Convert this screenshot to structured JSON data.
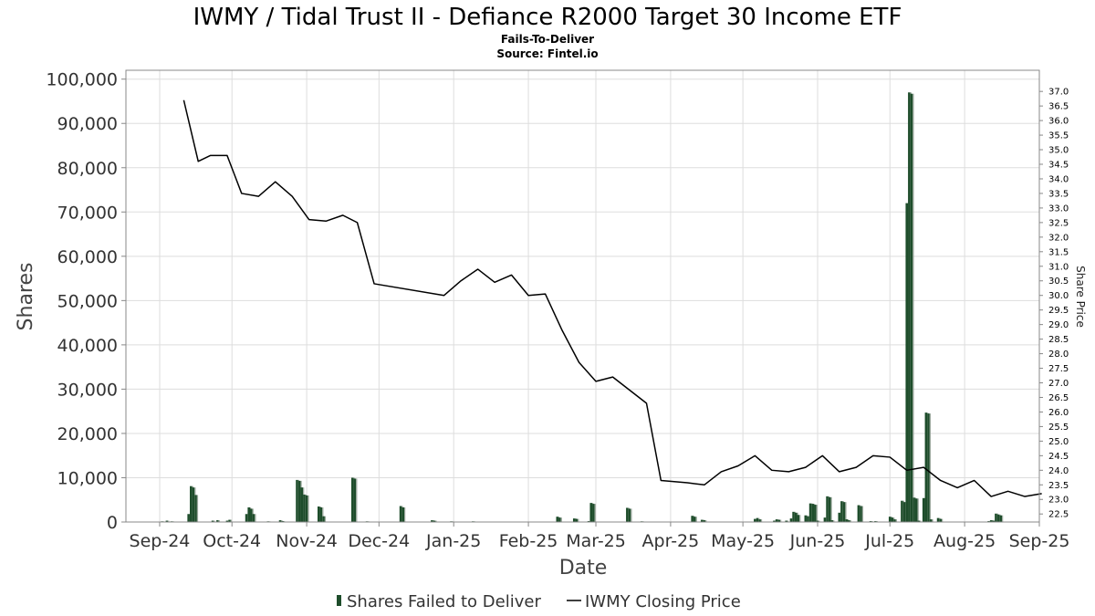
{
  "chart_data": {
    "type": "bar",
    "title": "IWMY / Tidal Trust II - Defiance R2000 Target 30 Income ETF",
    "subtitle": "Fails-To-Deliver",
    "source": "Source: Fintel.io",
    "xlabel": "Date",
    "ylabel": "Shares",
    "y2label": "Share Price",
    "x_range": [
      "2024-09-01",
      "2025-09-15"
    ],
    "ylim": [
      0,
      102000
    ],
    "y2lim": [
      22.35,
      37.35
    ],
    "grid": true,
    "legend_placement": "bottom-center",
    "x_ticks": [
      {
        "date": "2024-09-15",
        "label": "Sep-24"
      },
      {
        "date": "2024-10-15",
        "label": "Oct-24"
      },
      {
        "date": "2024-11-15",
        "label": "Nov-24"
      },
      {
        "date": "2024-12-15",
        "label": "Dec-24"
      },
      {
        "date": "2025-01-15",
        "label": "Jan-25"
      },
      {
        "date": "2025-02-15",
        "label": "Feb-25"
      },
      {
        "date": "2025-03-15",
        "label": "Mar-25"
      },
      {
        "date": "2025-04-15",
        "label": "Apr-25"
      },
      {
        "date": "2025-05-15",
        "label": "May-25"
      },
      {
        "date": "2025-06-15",
        "label": "Jun-25"
      },
      {
        "date": "2025-07-15",
        "label": "Jul-25"
      },
      {
        "date": "2025-08-15",
        "label": "Aug-25"
      },
      {
        "date": "2025-09-15",
        "label": "Sep-25"
      }
    ],
    "y_ticks": [
      {
        "value": 0,
        "label": "0"
      },
      {
        "value": 10000,
        "label": "10,000"
      },
      {
        "value": 20000,
        "label": "20,000"
      },
      {
        "value": 30000,
        "label": "30,000"
      },
      {
        "value": 40000,
        "label": "40,000"
      },
      {
        "value": 50000,
        "label": "50,000"
      },
      {
        "value": 60000,
        "label": "60,000"
      },
      {
        "value": 70000,
        "label": "70,000"
      },
      {
        "value": 80000,
        "label": "80,000"
      },
      {
        "value": 90000,
        "label": "90,000"
      },
      {
        "value": 100000,
        "label": "100,000"
      }
    ],
    "y2_ticks": [
      "22.5",
      "23.0",
      "23.5",
      "24.0",
      "24.5",
      "25.0",
      "25.5",
      "26.0",
      "26.5",
      "27.0",
      "27.5",
      "28.0",
      "28.5",
      "29.0",
      "29.5",
      "30.0",
      "30.5",
      "31.0",
      "31.5",
      "32.0",
      "32.5",
      "33.0",
      "33.5",
      "34.0",
      "34.5",
      "35.0",
      "35.5",
      "36.0",
      "36.5",
      "37.0"
    ],
    "series": [
      {
        "name": "Shares Failed to Deliver",
        "type": "bar",
        "color": "#1e4d2b",
        "points": [
          [
            "2024-09-16",
            150
          ],
          [
            "2024-09-18",
            300
          ],
          [
            "2024-09-20",
            150
          ],
          [
            "2024-09-27",
            1800
          ],
          [
            "2024-09-28",
            8100
          ],
          [
            "2024-09-29",
            7800
          ],
          [
            "2024-09-30",
            6100
          ],
          [
            "2024-10-07",
            300
          ],
          [
            "2024-10-09",
            400
          ],
          [
            "2024-10-13",
            300
          ],
          [
            "2024-10-14",
            500
          ],
          [
            "2024-10-21",
            1800
          ],
          [
            "2024-10-22",
            3300
          ],
          [
            "2024-10-23",
            3000
          ],
          [
            "2024-10-24",
            1800
          ],
          [
            "2024-10-30",
            150
          ],
          [
            "2024-11-04",
            400
          ],
          [
            "2024-11-05",
            200
          ],
          [
            "2024-11-11",
            9500
          ],
          [
            "2024-11-12",
            9300
          ],
          [
            "2024-11-13",
            7800
          ],
          [
            "2024-11-14",
            6200
          ],
          [
            "2024-11-15",
            6000
          ],
          [
            "2024-11-20",
            3500
          ],
          [
            "2024-11-21",
            3300
          ],
          [
            "2024-11-22",
            1300
          ],
          [
            "2024-12-04",
            10000
          ],
          [
            "2024-12-05",
            9800
          ],
          [
            "2024-12-10",
            150
          ],
          [
            "2024-12-24",
            3600
          ],
          [
            "2024-12-25",
            3300
          ],
          [
            "2025-01-06",
            400
          ],
          [
            "2025-01-07",
            300
          ],
          [
            "2025-01-14",
            150
          ],
          [
            "2025-01-23",
            150
          ],
          [
            "2025-02-27",
            1200
          ],
          [
            "2025-02-28",
            1000
          ],
          [
            "2025-03-06",
            800
          ],
          [
            "2025-03-07",
            700
          ],
          [
            "2025-03-12",
            200
          ],
          [
            "2025-03-13",
            4300
          ],
          [
            "2025-03-14",
            4100
          ],
          [
            "2025-03-28",
            3200
          ],
          [
            "2025-03-29",
            3000
          ],
          [
            "2025-04-03",
            150
          ],
          [
            "2025-04-24",
            1400
          ],
          [
            "2025-04-25",
            1200
          ],
          [
            "2025-04-28",
            500
          ],
          [
            "2025-04-29",
            400
          ],
          [
            "2025-05-20",
            700
          ],
          [
            "2025-05-21",
            900
          ],
          [
            "2025-05-22",
            600
          ],
          [
            "2025-05-28",
            300
          ],
          [
            "2025-05-29",
            600
          ],
          [
            "2025-05-30",
            500
          ],
          [
            "2025-06-02",
            300
          ],
          [
            "2025-06-04",
            800
          ],
          [
            "2025-06-05",
            2300
          ],
          [
            "2025-06-06",
            2100
          ],
          [
            "2025-06-07",
            1600
          ],
          [
            "2025-06-10",
            1500
          ],
          [
            "2025-06-11",
            1300
          ],
          [
            "2025-06-12",
            4200
          ],
          [
            "2025-06-13",
            4100
          ],
          [
            "2025-06-14",
            3900
          ],
          [
            "2025-06-15",
            300
          ],
          [
            "2025-06-18",
            1000
          ],
          [
            "2025-06-19",
            5800
          ],
          [
            "2025-06-20",
            5600
          ],
          [
            "2025-06-21",
            400
          ],
          [
            "2025-06-24",
            2100
          ],
          [
            "2025-06-25",
            4700
          ],
          [
            "2025-06-26",
            4500
          ],
          [
            "2025-06-27",
            600
          ],
          [
            "2025-06-28",
            400
          ],
          [
            "2025-07-02",
            3800
          ],
          [
            "2025-07-03",
            3600
          ],
          [
            "2025-07-07",
            200
          ],
          [
            "2025-07-09",
            200
          ],
          [
            "2025-07-15",
            1200
          ],
          [
            "2025-07-16",
            1000
          ],
          [
            "2025-07-17",
            600
          ],
          [
            "2025-07-20",
            4800
          ],
          [
            "2025-07-21",
            4500
          ],
          [
            "2025-07-22",
            72000
          ],
          [
            "2025-07-23",
            97000
          ],
          [
            "2025-07-24",
            96700
          ],
          [
            "2025-07-25",
            5500
          ],
          [
            "2025-07-26",
            5300
          ],
          [
            "2025-07-27",
            300
          ],
          [
            "2025-07-29",
            5400
          ],
          [
            "2025-07-30",
            24700
          ],
          [
            "2025-07-31",
            24500
          ],
          [
            "2025-08-01",
            600
          ],
          [
            "2025-08-04",
            900
          ],
          [
            "2025-08-05",
            700
          ],
          [
            "2025-08-25",
            200
          ],
          [
            "2025-08-26",
            400
          ],
          [
            "2025-08-27",
            300
          ],
          [
            "2025-08-28",
            1900
          ],
          [
            "2025-08-29",
            1700
          ],
          [
            "2025-08-30",
            1500
          ]
        ]
      },
      {
        "name": "IWMY Closing Price",
        "type": "line",
        "color": "#000000",
        "axis": "right",
        "points": [
          [
            "2024-09-25",
            36.7
          ],
          [
            "2024-10-01",
            34.6
          ],
          [
            "2024-10-06",
            34.8
          ],
          [
            "2024-10-13",
            34.8
          ],
          [
            "2024-10-19",
            33.5
          ],
          [
            "2024-10-26",
            33.4
          ],
          [
            "2024-11-02",
            33.9
          ],
          [
            "2024-11-09",
            33.4
          ],
          [
            "2024-11-16",
            32.6
          ],
          [
            "2024-11-23",
            32.55
          ],
          [
            "2024-11-30",
            32.75
          ],
          [
            "2024-12-06",
            32.5
          ],
          [
            "2024-12-13",
            30.4
          ],
          [
            "2025-01-11",
            30.0
          ],
          [
            "2025-01-18",
            30.5
          ],
          [
            "2025-01-25",
            30.9
          ],
          [
            "2025-02-01",
            30.45
          ],
          [
            "2025-02-08",
            30.7
          ],
          [
            "2025-02-15",
            30.0
          ],
          [
            "2025-02-22",
            30.05
          ],
          [
            "2025-03-01",
            28.8
          ],
          [
            "2025-03-08",
            27.7
          ],
          [
            "2025-03-15",
            27.05
          ],
          [
            "2025-03-22",
            27.2
          ],
          [
            "2025-03-29",
            26.75
          ],
          [
            "2025-04-05",
            26.3
          ],
          [
            "2025-04-11",
            23.65
          ],
          [
            "2025-04-22",
            23.57
          ],
          [
            "2025-04-29",
            23.5
          ],
          [
            "2025-05-06",
            23.95
          ],
          [
            "2025-05-13",
            24.15
          ],
          [
            "2025-05-20",
            24.5
          ],
          [
            "2025-05-27",
            24.0
          ],
          [
            "2025-06-03",
            23.95
          ],
          [
            "2025-06-10",
            24.1
          ],
          [
            "2025-06-17",
            24.5
          ],
          [
            "2025-06-24",
            23.95
          ],
          [
            "2025-07-01",
            24.1
          ],
          [
            "2025-07-08",
            24.5
          ],
          [
            "2025-07-15",
            24.45
          ],
          [
            "2025-07-22",
            24.0
          ],
          [
            "2025-07-29",
            24.1
          ],
          [
            "2025-08-05",
            23.65
          ],
          [
            "2025-08-12",
            23.4
          ],
          [
            "2025-08-19",
            23.65
          ],
          [
            "2025-08-26",
            23.1
          ],
          [
            "2025-09-02",
            23.28
          ],
          [
            "2025-09-09",
            23.1
          ],
          [
            "2025-09-16",
            23.2
          ]
        ]
      }
    ]
  }
}
